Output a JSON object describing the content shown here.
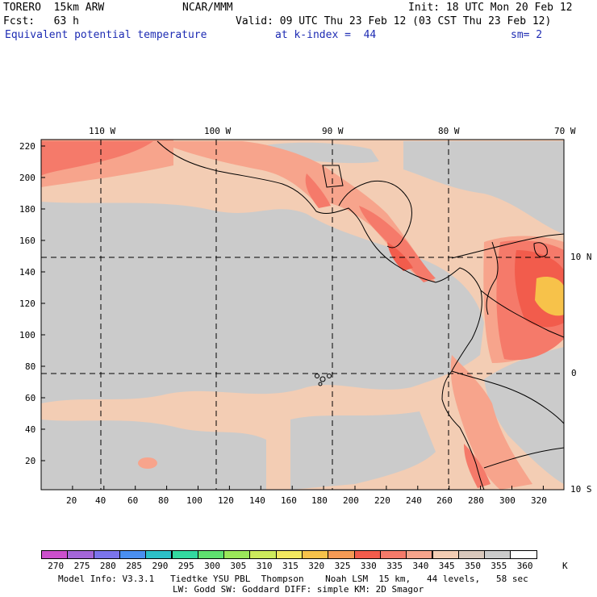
{
  "header": {
    "model": "TORERO  15km ARW",
    "center": "NCAR/MMM",
    "init": "Init: 18 UTC Mon 20 Feb 12",
    "fcst": "Fcst:   63 h",
    "valid": "Valid: 09 UTC Thu 23 Feb 12 (03 CST Thu 23 Feb 12)",
    "field": "Equivalent potential temperature",
    "level": "at k-index =  44",
    "smooth": "sm= 2"
  },
  "axes": {
    "lon_labels": [
      "110 W",
      "100 W",
      "90 W",
      "80 W",
      "70 W"
    ],
    "lat_labels": [
      "10 N",
      "0",
      "10 S"
    ],
    "y_ticks": [
      "220",
      "200",
      "180",
      "160",
      "140",
      "120",
      "100",
      "80",
      "60",
      "40",
      "20"
    ],
    "x_ticks": [
      "20",
      "40",
      "60",
      "80",
      "100",
      "120",
      "140",
      "160",
      "180",
      "200",
      "220",
      "240",
      "260",
      "280",
      "300",
      "320"
    ]
  },
  "legend": {
    "unit": "K",
    "labels": [
      "270",
      "275",
      "280",
      "285",
      "290",
      "295",
      "300",
      "305",
      "310",
      "315",
      "320",
      "325",
      "330",
      "335",
      "340",
      "345",
      "350",
      "355",
      "360"
    ],
    "colors": [
      "#cc4fcc",
      "#a466d8",
      "#7b74ec",
      "#4a8ff0",
      "#2cc0c8",
      "#33d9a0",
      "#5fe070",
      "#9ae65a",
      "#cdea5c",
      "#f2e860",
      "#f7c24a",
      "#f59a55",
      "#f25c4c",
      "#f57a6a",
      "#f7a48c",
      "#f3cdb4",
      "#d9c8bc",
      "#cbcbcb",
      "#ffffff"
    ]
  },
  "footer": {
    "line1": "Model Info: V3.3.1   Tiedtke YSU PBL  Thompson    Noah LSM  15 km,   44 levels,   58 sec",
    "line2": "LW: Godd SW: Goddard DIFF: simple KM: 2D Smagor"
  },
  "field_colors": {
    "background": "#f3cdb4",
    "gray": "#cbcbcb",
    "warm": "#f7a48c",
    "hot": "#f57a6a",
    "red": "#f25c4c",
    "orange": "#f7c24a"
  }
}
